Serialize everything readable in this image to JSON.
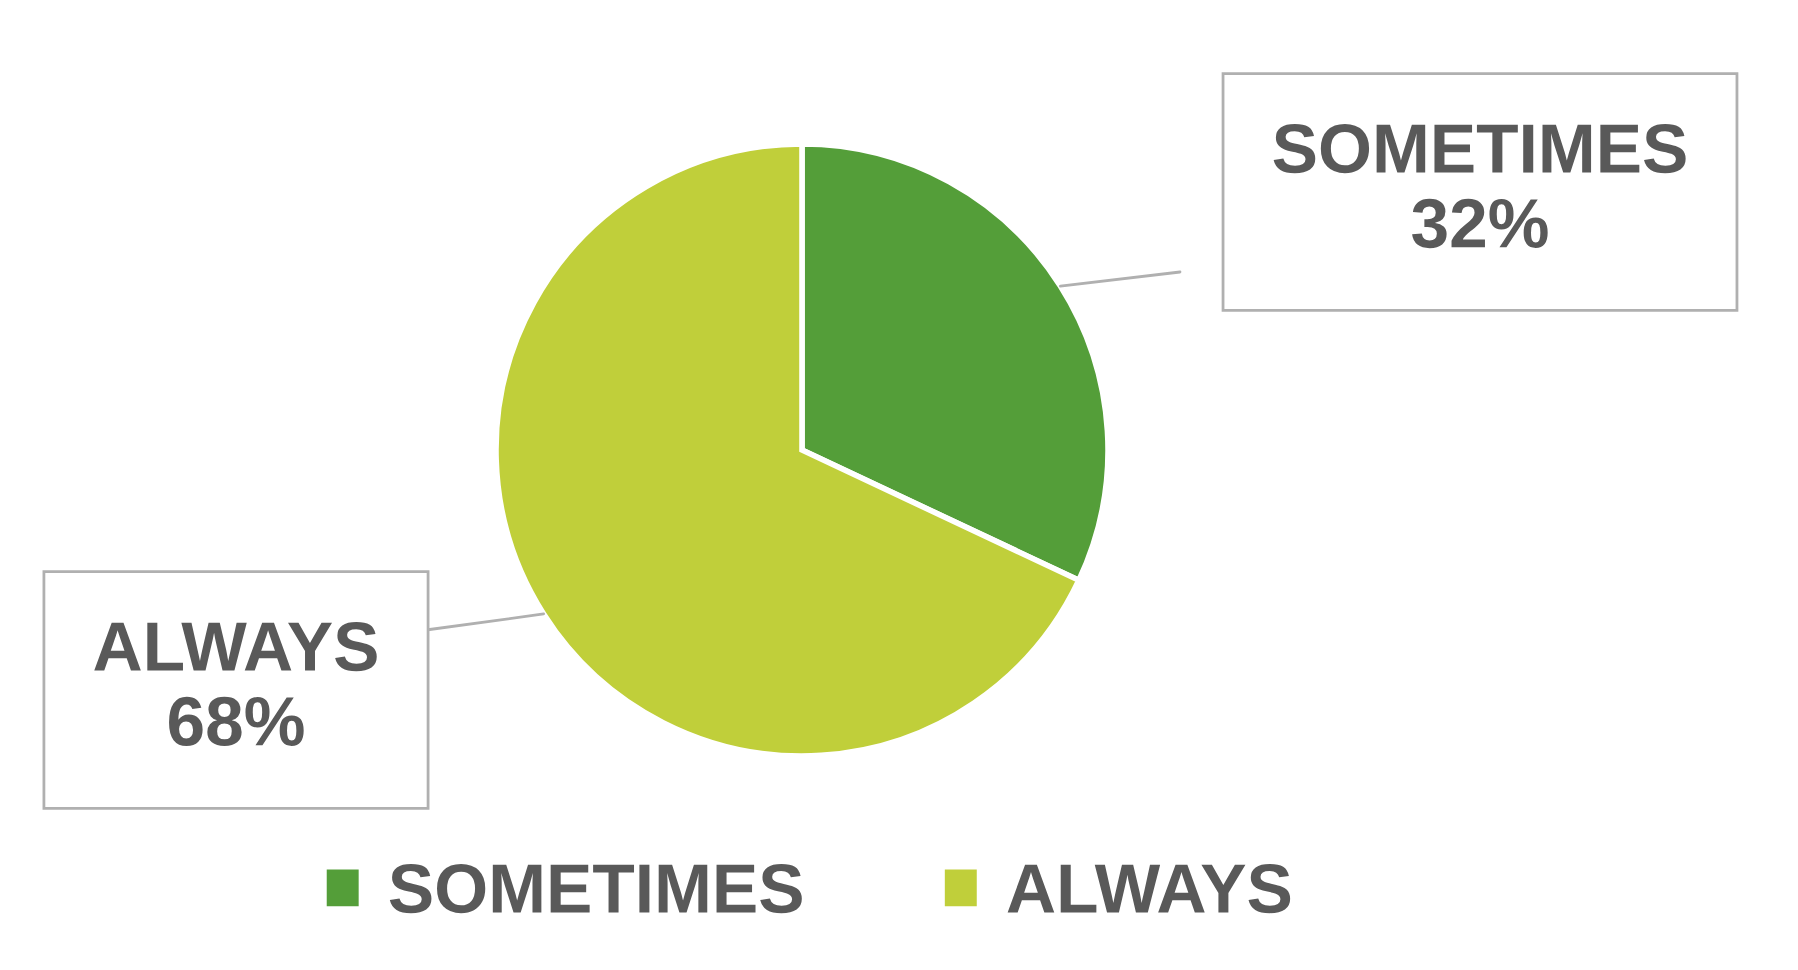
{
  "chart_data": {
    "type": "pie",
    "categories": [
      "SOMETIMES",
      "ALWAYS"
    ],
    "values": [
      32,
      68
    ],
    "colors": [
      "#549e39",
      "#c0cf3a"
    ],
    "value_labels": [
      "32%",
      "68%"
    ],
    "legend": "bottom"
  }
}
